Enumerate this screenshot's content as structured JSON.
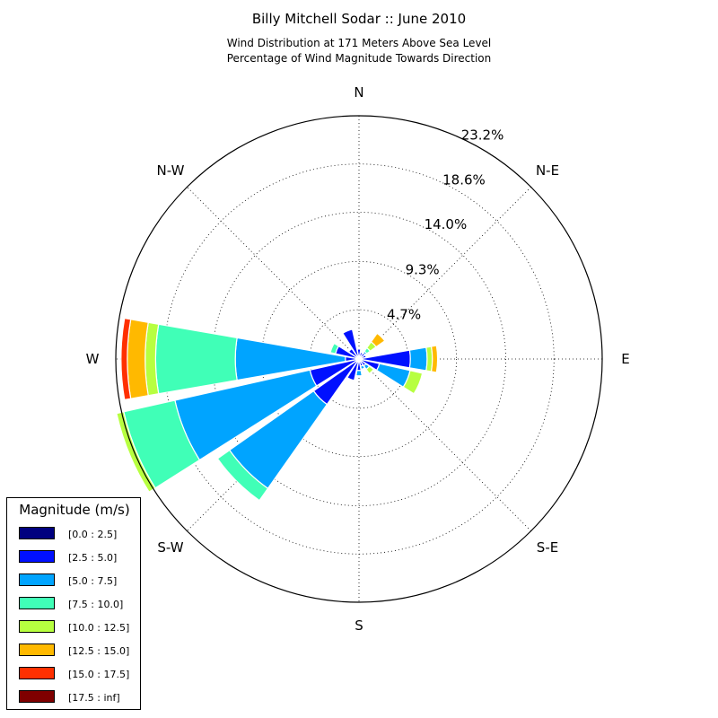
{
  "chart_data": {
    "type": "windrose",
    "title": "Billy Mitchell Sodar :: June 2010",
    "subtitle_line1": "Wind Distribution at 171 Meters Above Sea Level",
    "subtitle_line2": "Percentage of Wind Magnitude Towards Direction",
    "direction_labels": {
      "N": "N",
      "NE": "N-E",
      "E": "E",
      "SE": "S-E",
      "S": "S",
      "SW": "S-W",
      "W": "W",
      "NW": "N-W"
    },
    "radial_ticks": [
      4.7,
      9.3,
      14.0,
      18.6,
      23.2
    ],
    "radial_tick_labels": [
      "4.7%",
      "9.3%",
      "14.0%",
      "18.6%",
      "23.2%"
    ],
    "rmax": 23.2,
    "sector_width_deg": 22.5,
    "legend_title": "Magnitude (m/s)",
    "bins": [
      {
        "label": "[0.0 : 2.5]",
        "color": "#00007f"
      },
      {
        "label": "[2.5 : 5.0]",
        "color": "#0010ff"
      },
      {
        "label": "[5.0 : 7.5]",
        "color": "#00a4ff"
      },
      {
        "label": "[7.5 : 10.0]",
        "color": "#40ffb7"
      },
      {
        "label": "[10.0 : 12.5]",
        "color": "#b7ff40"
      },
      {
        "label": "[12.5 : 15.0]",
        "color": "#ffb900"
      },
      {
        "label": "[15.0 : 17.5]",
        "color": "#ff3000"
      },
      {
        "label": "[17.5 : inf]",
        "color": "#7f0000"
      }
    ],
    "sectors": [
      {
        "direction": 0,
        "values": [
          0.15,
          0.8,
          0,
          0,
          0,
          0,
          0,
          0
        ]
      },
      {
        "direction": 22.5,
        "values": [
          0.15,
          0.5,
          0,
          0,
          0,
          0,
          0,
          0
        ]
      },
      {
        "direction": 45,
        "values": [
          0.1,
          0.6,
          0.2,
          0.4,
          0.7,
          1.0,
          0,
          0
        ]
      },
      {
        "direction": 67.5,
        "values": [
          0.1,
          0.6,
          0,
          0,
          0,
          0,
          0,
          0
        ]
      },
      {
        "direction": 90,
        "values": [
          0.2,
          4.7,
          1.6,
          0,
          0.5,
          0.5,
          0,
          0
        ]
      },
      {
        "direction": 112.5,
        "values": [
          0.2,
          1.8,
          3.0,
          0,
          1.2,
          0,
          0,
          0
        ]
      },
      {
        "direction": 135,
        "values": [
          0.2,
          0.6,
          0.4,
          0,
          0.5,
          0,
          0,
          0
        ]
      },
      {
        "direction": 157.5,
        "values": [
          0.1,
          0.6,
          0.3,
          0,
          0,
          0,
          0,
          0
        ]
      },
      {
        "direction": 180,
        "values": [
          0.1,
          1.0,
          0.5,
          0,
          0,
          0,
          0,
          0
        ]
      },
      {
        "direction": 202.5,
        "values": [
          0.3,
          1.8,
          0,
          0,
          0,
          0,
          0,
          0
        ]
      },
      {
        "direction": 225,
        "values": [
          0.3,
          5.0,
          9.8,
          1.4,
          0,
          0,
          0,
          0
        ]
      },
      {
        "direction": 247.5,
        "values": [
          0.3,
          4.5,
          13.2,
          5.0,
          0.7,
          0,
          0,
          0
        ]
      },
      {
        "direction": 270,
        "values": [
          0.3,
          1.0,
          10.5,
          7.6,
          1.0,
          1.7,
          0.6,
          0
        ]
      },
      {
        "direction": 292.5,
        "values": [
          0.3,
          2.0,
          0,
          0.5,
          0,
          0,
          0,
          0
        ]
      },
      {
        "direction": 315,
        "values": [
          0.2,
          1.0,
          0,
          0,
          0,
          0,
          0,
          0
        ]
      },
      {
        "direction": 337.5,
        "values": [
          0.3,
          2.6,
          0,
          0,
          0,
          0,
          0,
          0
        ]
      }
    ]
  }
}
